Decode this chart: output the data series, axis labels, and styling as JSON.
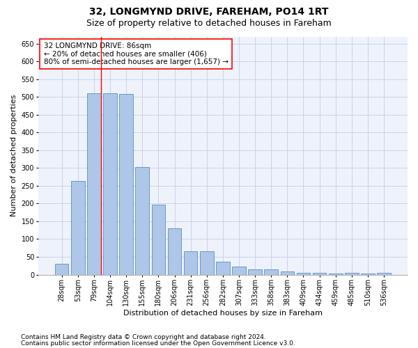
{
  "title1": "32, LONGMYND DRIVE, FAREHAM, PO14 1RT",
  "title2": "Size of property relative to detached houses in Fareham",
  "xlabel": "Distribution of detached houses by size in Fareham",
  "ylabel": "Number of detached properties",
  "categories": [
    "28sqm",
    "53sqm",
    "79sqm",
    "104sqm",
    "130sqm",
    "155sqm",
    "180sqm",
    "206sqm",
    "231sqm",
    "256sqm",
    "282sqm",
    "307sqm",
    "333sqm",
    "358sqm",
    "383sqm",
    "409sqm",
    "434sqm",
    "459sqm",
    "485sqm",
    "510sqm",
    "536sqm"
  ],
  "values": [
    30,
    263,
    511,
    511,
    508,
    302,
    196,
    131,
    65,
    65,
    37,
    22,
    15,
    15,
    8,
    5,
    5,
    3,
    5,
    3,
    5
  ],
  "bar_color": "#aec6e8",
  "bar_edge_color": "#5a8fc3",
  "annotation_text_line1": "32 LONGMYND DRIVE: 86sqm",
  "annotation_text_line2": "← 20% of detached houses are smaller (406)",
  "annotation_text_line3": "80% of semi-detached houses are larger (1,657) →",
  "vline_x_index": 2,
  "ylim": [
    0,
    670
  ],
  "yticks": [
    0,
    50,
    100,
    150,
    200,
    250,
    300,
    350,
    400,
    450,
    500,
    550,
    600,
    650
  ],
  "footer1": "Contains HM Land Registry data © Crown copyright and database right 2024.",
  "footer2": "Contains public sector information licensed under the Open Government Licence v3.0.",
  "bg_color": "#eef2fb",
  "grid_color": "#c8d4e8",
  "title1_fontsize": 10,
  "title2_fontsize": 9,
  "axis_label_fontsize": 8,
  "tick_fontsize": 7,
  "annotation_fontsize": 7.5,
  "footer_fontsize": 6.5
}
